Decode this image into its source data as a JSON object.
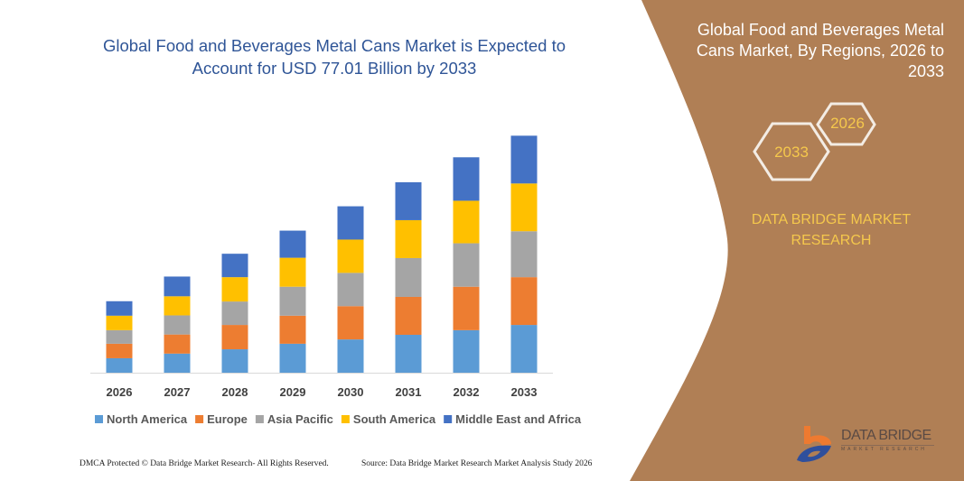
{
  "title": "Global Food and Beverages Metal Cans Market is Expected to Account for USD 77.01 Billion by 2033",
  "side_panel": {
    "title": "Global Food and Beverages Metal Cans Market, By Regions, 2026 to 2033",
    "hex_start": "2026",
    "hex_end": "2033",
    "brand_line1": "DATA BRIDGE MARKET",
    "brand_line2": "RESEARCH",
    "logo_name": "DATA BRIDGE",
    "logo_sub": "MARKET RESEARCH",
    "color": "#B07F55"
  },
  "footer": {
    "left": "DMCA Protected © Data Bridge Market Research- All Rights Reserved.",
    "right": "Source: Data Bridge Market Research Market Analysis Study 2026"
  },
  "chart_data": {
    "type": "bar",
    "stacked": true,
    "categories": [
      "2026",
      "2027",
      "2028",
      "2029",
      "2030",
      "2031",
      "2032",
      "2033"
    ],
    "series": [
      {
        "name": "North America",
        "color": "#5B9BD5",
        "values": [
          4.7,
          6.2,
          7.6,
          9.4,
          10.8,
          12.3,
          13.8,
          15.5
        ]
      },
      {
        "name": "Europe",
        "color": "#ED7D31",
        "values": [
          4.7,
          6.2,
          7.9,
          9.1,
          10.8,
          12.3,
          14.1,
          15.5
        ]
      },
      {
        "name": "Asia Pacific",
        "color": "#A5A5A5",
        "values": [
          4.4,
          6.2,
          7.6,
          9.4,
          10.8,
          12.6,
          14.1,
          14.9
        ]
      },
      {
        "name": "South America",
        "color": "#FFC000",
        "values": [
          4.7,
          6.2,
          7.9,
          9.4,
          10.8,
          12.3,
          13.8,
          15.5
        ]
      },
      {
        "name": "Middle East and Africa",
        "color": "#4472C4",
        "values": [
          4.7,
          6.4,
          7.6,
          8.8,
          10.8,
          12.3,
          14.1,
          15.5
        ]
      }
    ],
    "ylim": [
      0,
      77.01
    ],
    "grid": false,
    "legend": "bottom",
    "y_axis_shown": false
  }
}
